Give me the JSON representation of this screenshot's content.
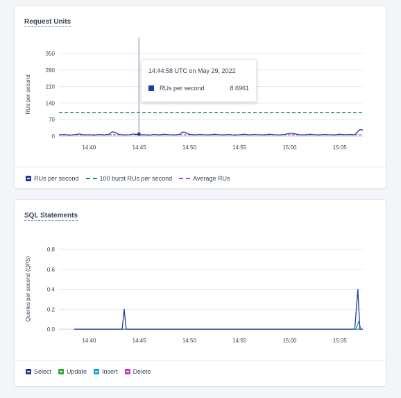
{
  "colors": {
    "ru": "#1f3c9e",
    "burst": "#0f8a6e",
    "avg": "#b43ed8",
    "select": "#1f3c9e",
    "update": "#2eaa3a",
    "insert": "#16a0e0",
    "delete": "#c33ac8"
  },
  "tooltip": {
    "time": "14:44:58 UTC on May 29, 2022",
    "series_label": "RUs per second",
    "value": "8.6961"
  },
  "chart_data": [
    {
      "type": "line",
      "title": "Request Units",
      "ylabel": "RUs per second",
      "xlabel": "",
      "ylim": [
        0,
        350
      ],
      "y_ticks": [
        "0",
        "70",
        "140",
        "210",
        "280",
        "350"
      ],
      "y_tick_values": [
        0,
        70,
        140,
        210,
        280,
        350
      ],
      "x_tick_labels": [
        "14:40",
        "14:45",
        "14:50",
        "14:55",
        "15:00",
        "15:05"
      ],
      "x_tick_minutes": [
        40,
        45,
        50,
        55,
        60,
        65
      ],
      "xlim_minutes": [
        37,
        67.3
      ],
      "x_unit": "minutes after 14:00, May 29, 2022",
      "grid": true,
      "legend_placement": "bottom",
      "series": [
        {
          "name": "RUs per second",
          "style": "solid",
          "x": [
            37.0,
            37.5,
            38.0,
            38.5,
            39.0,
            39.5,
            40.0,
            40.5,
            41.0,
            41.5,
            42.0,
            42.3,
            42.6,
            43.0,
            43.5,
            44.0,
            44.5,
            45.0,
            45.5,
            46.0,
            46.5,
            47.0,
            47.5,
            48.0,
            48.5,
            49.0,
            49.3,
            49.6,
            50.0,
            50.5,
            51.0,
            51.5,
            52.0,
            52.5,
            53.0,
            53.5,
            54.0,
            54.5,
            55.0,
            55.5,
            56.0,
            56.5,
            57.0,
            57.5,
            58.0,
            58.5,
            59.0,
            59.5,
            60.0,
            60.5,
            61.0,
            61.5,
            62.0,
            62.5,
            63.0,
            63.5,
            64.0,
            64.5,
            65.0,
            65.5,
            66.0,
            66.5,
            67.0,
            67.3
          ],
          "values": [
            5,
            7,
            4,
            6,
            9,
            5,
            6,
            4,
            7,
            5,
            8,
            18,
            16,
            7,
            5,
            6,
            9,
            5,
            6,
            4,
            7,
            5,
            8,
            6,
            5,
            7,
            17,
            16,
            8,
            5,
            7,
            6,
            5,
            8,
            6,
            5,
            7,
            4,
            6,
            8,
            5,
            7,
            6,
            5,
            8,
            6,
            5,
            7,
            12,
            10,
            6,
            5,
            8,
            6,
            5,
            7,
            6,
            5,
            8,
            6,
            7,
            6,
            28,
            26
          ]
        },
        {
          "name": "100 burst RUs per second",
          "style": "dashed",
          "x": [
            37.0,
            67.3
          ],
          "values": [
            100,
            100
          ]
        },
        {
          "name": "Average RUs",
          "style": "dashed",
          "x": [
            37.0,
            67.3
          ],
          "values": [
            6,
            6
          ]
        }
      ]
    },
    {
      "type": "line",
      "title": "SQL Statements",
      "ylabel": "Queries per second (QPS)",
      "xlabel": "",
      "ylim": [
        0,
        0.8
      ],
      "y_ticks": [
        "0.0",
        "0.2",
        "0.4",
        "0.6",
        "0.8"
      ],
      "y_tick_values": [
        0,
        0.2,
        0.4,
        0.6,
        0.8
      ],
      "x_tick_labels": [
        "14:40",
        "14:45",
        "14:50",
        "14:55",
        "15:00",
        "15:05"
      ],
      "x_tick_minutes": [
        40,
        45,
        50,
        55,
        60,
        65
      ],
      "xlim_minutes": [
        37,
        67.3
      ],
      "x_unit": "minutes after 14:00, May 29, 2022",
      "grid": true,
      "legend_placement": "bottom",
      "series": [
        {
          "name": "Select",
          "x": [
            38.5,
            43.3,
            43.5,
            43.7,
            66.5,
            66.8,
            67.0,
            67.3
          ],
          "values": [
            0,
            0,
            0.2,
            0,
            0,
            0.4,
            0,
            0
          ]
        },
        {
          "name": "Update",
          "x": [
            38.5,
            67.3
          ],
          "values": [
            0,
            0
          ]
        },
        {
          "name": "Insert",
          "x": [
            38.5,
            66.6,
            66.9,
            67.1,
            67.3
          ],
          "values": [
            0,
            0,
            0.08,
            0,
            0
          ]
        },
        {
          "name": "Delete",
          "x": [
            38.5,
            67.3
          ],
          "values": [
            0,
            0
          ]
        }
      ]
    }
  ]
}
